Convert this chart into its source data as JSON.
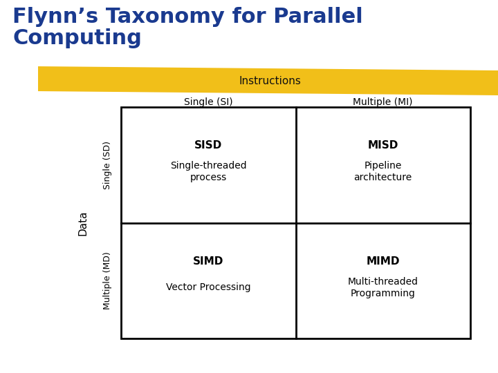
{
  "title_line1": "Flynn’s Taxonomy for Parallel",
  "title_line2": "Computing",
  "title_color": "#1a3a8f",
  "title_fontsize": 22,
  "instructions_label": "Instructions",
  "instructions_color": "#f0b800",
  "data_label": "Data",
  "data_label_color": "#000000",
  "col_labels": [
    "Single (SI)",
    "Multiple (MI)"
  ],
  "row_labels": [
    "Single (SD)",
    "Multiple (MD)"
  ],
  "row_label_color": "#000000",
  "col_label_color": "#000000",
  "cells": [
    {
      "acronym": "SISD",
      "desc": "Single-threaded\nprocess"
    },
    {
      "acronym": "MISD",
      "desc": "Pipeline\narchitecture"
    },
    {
      "acronym": "SIMD",
      "desc": "Vector Processing"
    },
    {
      "acronym": "MIMD",
      "desc": "Multi-threaded\nProgramming"
    }
  ],
  "cell_bg": "#ffffff",
  "cell_border": "#000000",
  "acronym_fontsize": 11,
  "desc_fontsize": 10,
  "background_color": "#ffffff"
}
